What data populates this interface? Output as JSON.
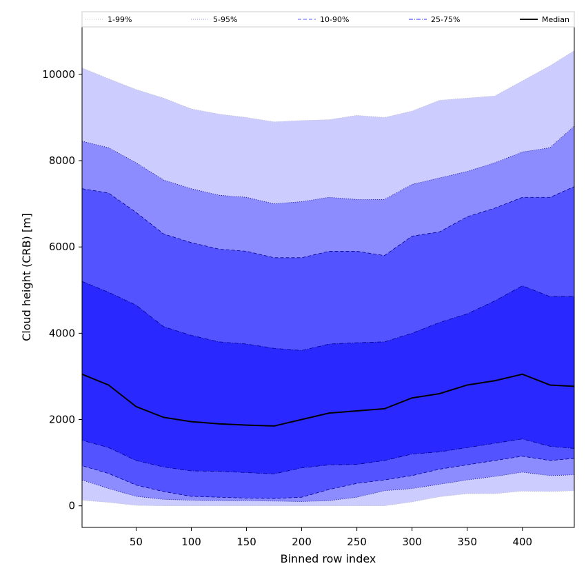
{
  "chart_data": {
    "type": "area",
    "title": "",
    "xlabel": "Binned row index",
    "ylabel": "Cloud height (CRB) [m]",
    "xlim": [
      1,
      447
    ],
    "ylim": [
      -500,
      11100
    ],
    "xticks": [
      50,
      100,
      150,
      200,
      250,
      300,
      350,
      400
    ],
    "yticks": [
      0,
      2000,
      4000,
      6000,
      8000,
      10000
    ],
    "grid": false,
    "legend_position": "top",
    "x": [
      1,
      25,
      50,
      75,
      100,
      125,
      150,
      175,
      200,
      225,
      250,
      275,
      300,
      325,
      350,
      375,
      400,
      425,
      447
    ],
    "bands": [
      {
        "name": "1-99%",
        "linestyle": "dotted",
        "fill": "#ccccff",
        "edge": "#bbbbbb",
        "lower": [
          130,
          80,
          10,
          0,
          0,
          0,
          0,
          0,
          0,
          0,
          0,
          0,
          90,
          210,
          280,
          280,
          340,
          330,
          350
        ],
        "upper": [
          10150,
          9900,
          9650,
          9450,
          9200,
          9080,
          9000,
          8900,
          8930,
          8950,
          9050,
          9000,
          9150,
          9400,
          9450,
          9500,
          9850,
          10200,
          10550
        ]
      },
      {
        "name": "5-95%",
        "linestyle": "dotted",
        "fill": "#8c8cff",
        "edge": "#00008b",
        "lower": [
          600,
          400,
          220,
          150,
          130,
          120,
          120,
          110,
          100,
          120,
          200,
          350,
          400,
          500,
          600,
          680,
          780,
          700,
          720
        ],
        "upper": [
          8450,
          8300,
          7950,
          7550,
          7350,
          7200,
          7150,
          7000,
          7050,
          7150,
          7100,
          7100,
          7450,
          7600,
          7750,
          7950,
          8200,
          8300,
          8800
        ]
      },
      {
        "name": "10-90%",
        "linestyle": "dashed",
        "fill": "#5353ff",
        "edge": "#00008b",
        "lower": [
          930,
          750,
          480,
          330,
          220,
          200,
          180,
          170,
          200,
          380,
          520,
          600,
          700,
          850,
          950,
          1050,
          1150,
          1050,
          1100
        ],
        "upper": [
          7350,
          7250,
          6800,
          6300,
          6100,
          5950,
          5900,
          5750,
          5750,
          5900,
          5900,
          5800,
          6250,
          6350,
          6700,
          6900,
          7150,
          7150,
          7400
        ]
      },
      {
        "name": "25-75%",
        "linestyle": "dashdot",
        "fill": "#2828ff",
        "edge": "#00008b",
        "lower": [
          1520,
          1350,
          1050,
          900,
          810,
          800,
          770,
          740,
          880,
          950,
          960,
          1050,
          1200,
          1250,
          1350,
          1450,
          1550,
          1380,
          1330
        ],
        "upper": [
          5200,
          4950,
          4650,
          4150,
          3950,
          3800,
          3750,
          3650,
          3600,
          3750,
          3780,
          3800,
          4000,
          4250,
          4450,
          4750,
          5100,
          4850,
          4850
        ]
      }
    ],
    "median": {
      "name": "Median",
      "color": "#000000",
      "values": [
        3050,
        2800,
        2300,
        2050,
        1950,
        1900,
        1870,
        1850,
        2000,
        2150,
        2200,
        2250,
        2500,
        2600,
        2800,
        2900,
        3050,
        2800,
        2770
      ]
    }
  }
}
